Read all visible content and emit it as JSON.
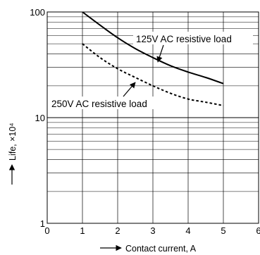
{
  "chart_data": {
    "type": "line",
    "title": "",
    "xlabel": "Contact current, A",
    "ylabel": "Life, ×10⁴",
    "xlim": [
      0,
      6
    ],
    "ylim": [
      1,
      100
    ],
    "yscale": "log",
    "grid": true,
    "x_ticks": [
      "0",
      "1",
      "2",
      "3",
      "4",
      "5",
      "6"
    ],
    "y_ticks": [
      "1",
      "10",
      "100"
    ],
    "series": [
      {
        "name": "125V AC resistive load",
        "line_style": "solid",
        "x": [
          1,
          1.5,
          2,
          2.5,
          3,
          3.5,
          4,
          4.5,
          5
        ],
        "y": [
          100,
          75,
          57,
          45,
          37,
          31,
          27,
          24,
          21
        ]
      },
      {
        "name": "250V AC resistive load",
        "line_style": "dashed",
        "x": [
          1,
          1.5,
          2,
          2.5,
          3,
          3.5,
          4,
          4.5,
          5
        ],
        "y": [
          50,
          37,
          29,
          24,
          20,
          17,
          15,
          14,
          13
        ]
      }
    ],
    "annotations": [
      {
        "text": "125V AC resistive load",
        "points_to_series": 0
      },
      {
        "text": "250V AC resistive load",
        "points_to_series": 1
      }
    ],
    "colors": {
      "line": "#000000",
      "grid": "#000000",
      "background": "#ffffff"
    }
  }
}
